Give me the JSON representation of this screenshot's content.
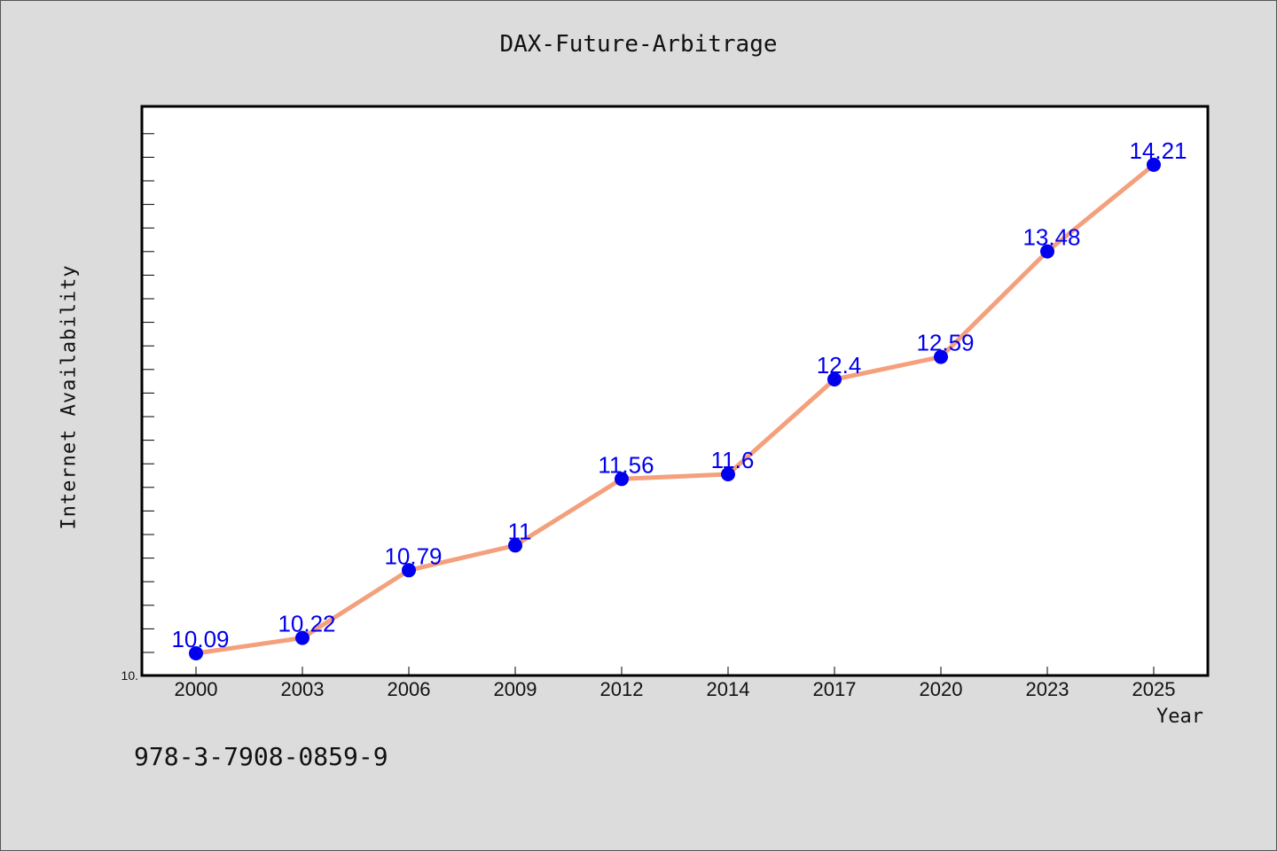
{
  "chart_data": {
    "type": "line",
    "title": "DAX-Future-Arbitrage",
    "xlabel": "Year",
    "ylabel": "Internet Availability",
    "categories": [
      "2000",
      "2003",
      "2006",
      "2009",
      "2012",
      "2014",
      "2017",
      "2020",
      "2023",
      "2025"
    ],
    "series": [
      {
        "values": [
          10.09,
          10.22,
          10.79,
          11,
          11.56,
          11.6,
          12.4,
          12.59,
          13.48,
          14.21
        ],
        "labels": [
          "10.09",
          "10.22",
          "10.79",
          "11",
          "11.56",
          "11.6",
          "12.4",
          "12.59",
          "13.48",
          "14.21"
        ]
      }
    ],
    "ylim": [
      10,
      14.8
    ],
    "y_tick_labels": [
      "10."
    ],
    "grid": false,
    "colors": {
      "line": "#f4a07c",
      "marker": "#0000ee",
      "data_label": "#0000ee",
      "plot_background": "#ffffff",
      "page_background": "#dcdcdc"
    }
  },
  "footer": {
    "isbn": "978-3-7908-0859-9"
  }
}
